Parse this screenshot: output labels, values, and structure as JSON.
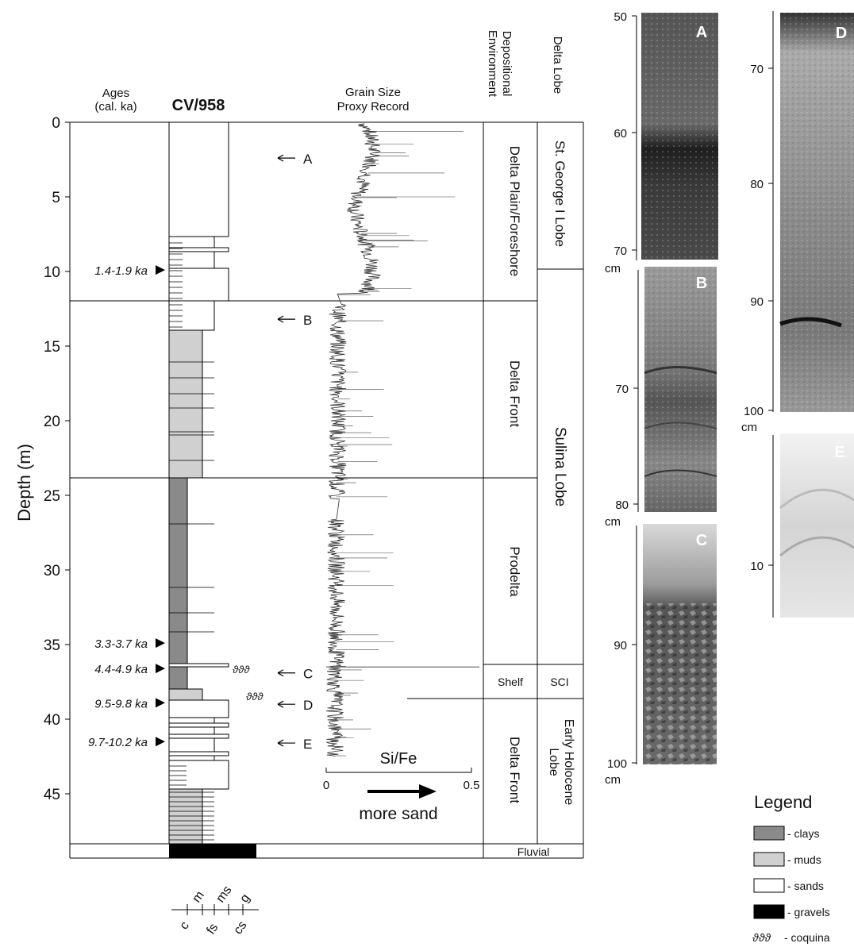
{
  "header": {
    "ages_title_1": "Ages",
    "ages_title_2": "(cal. ka)",
    "core_name": "CV/958",
    "grain_title_1": "Grain Size",
    "grain_title_2": "Proxy Record",
    "dep_env_title_1": "Depositional",
    "dep_env_title_2": "Environment",
    "lobe_title": "Delta Lobe"
  },
  "axis": {
    "ylabel": "Depth (m)",
    "ticks": [
      "0",
      "5",
      "10",
      "15",
      "20",
      "25",
      "30",
      "35",
      "40",
      "45"
    ]
  },
  "ages": [
    {
      "label": "1.4-1.9 ka",
      "depth": 9.9
    },
    {
      "label": "3.3-3.7 ka",
      "depth": 34.9
    },
    {
      "label": "4.4-4.9 ka",
      "depth": 36.6
    },
    {
      "label": "9.5-9.8 ka",
      "depth": 38.9
    },
    {
      "label": "9.7-10.2 ka",
      "depth": 41.5
    }
  ],
  "sample_markers": [
    {
      "label": "A",
      "depth": 2.4
    },
    {
      "label": "B",
      "depth": 13.2
    },
    {
      "label": "C",
      "depth": 36.9
    },
    {
      "label": "D",
      "depth": 39.0
    },
    {
      "label": "E",
      "depth": 41.6
    }
  ],
  "environments": [
    {
      "label": "Delta Plain/Foreshore"
    },
    {
      "label": "Delta Front"
    },
    {
      "label": "Prodelta"
    },
    {
      "label": "Shelf"
    },
    {
      "label": "Delta Front"
    },
    {
      "label": "Fluvial"
    }
  ],
  "lobes": [
    {
      "label": "St. George I Lobe"
    },
    {
      "label": "Sulina Lobe"
    },
    {
      "label": "SCI"
    },
    {
      "label": "Early Holocene Lobe"
    }
  ],
  "grain": {
    "axis_title": "Si/Fe",
    "tick_min": "0",
    "tick_max": "0.5",
    "arrow_label": "more sand"
  },
  "grain_size_scale": {
    "top": [
      "m",
      "ms",
      "g"
    ],
    "bottom": [
      "c",
      "fs",
      "cs"
    ]
  },
  "photos": [
    {
      "label": "A",
      "unit": "cm",
      "ticks": [
        "50",
        "60",
        "70"
      ]
    },
    {
      "label": "B",
      "unit": "cm",
      "ticks": [
        "70",
        "80"
      ]
    },
    {
      "label": "C",
      "unit": "cm",
      "ticks": [
        "90",
        "100"
      ]
    },
    {
      "label": "D",
      "unit": "cm",
      "ticks": [
        "70",
        "80",
        "90",
        "100"
      ]
    },
    {
      "label": "E",
      "unit": "",
      "ticks": [
        "10"
      ]
    }
  ],
  "legend": {
    "title": "Legend",
    "items": [
      {
        "label": "- clays",
        "color": "#8a8a8a"
      },
      {
        "label": "- muds",
        "color": "#d0d0d0"
      },
      {
        "label": "- sands",
        "color": "#ffffff"
      },
      {
        "label": "- gravels",
        "color": "#000000"
      }
    ],
    "coquina_label": "- coquina"
  }
}
